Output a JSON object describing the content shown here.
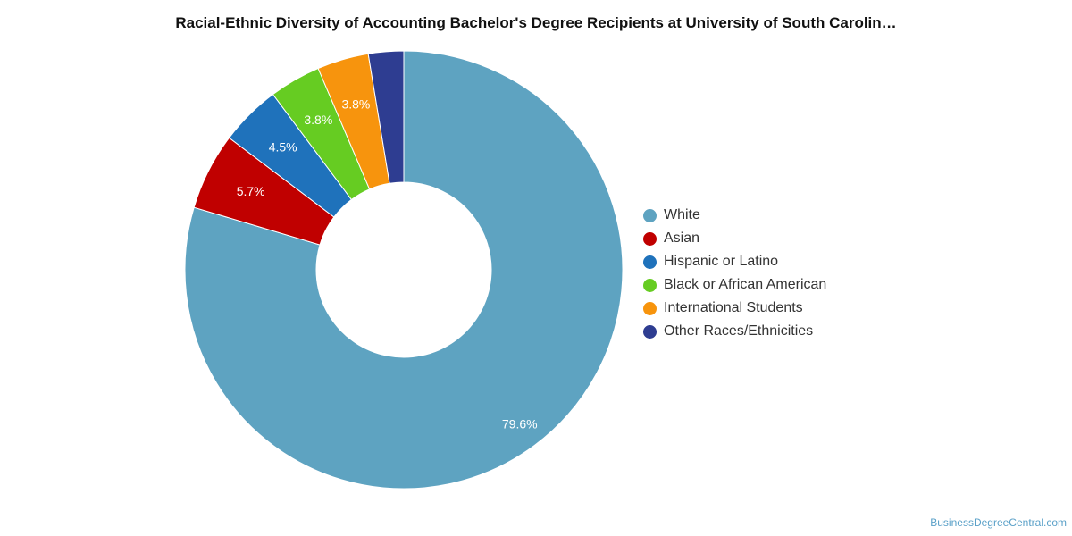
{
  "chart_data": {
    "type": "pie",
    "donut": true,
    "title": "Racial-Ethnic Diversity of Accounting Bachelor's Degree Recipients at University of South Carolin…",
    "legend_position": "right",
    "slices": [
      {
        "name": "White",
        "value": 79.6,
        "label": "79.6%",
        "color": "#5ea3c1"
      },
      {
        "name": "Asian",
        "value": 5.7,
        "label": "5.7%",
        "color": "#c00000"
      },
      {
        "name": "Hispanic or Latino",
        "value": 4.5,
        "label": "4.5%",
        "color": "#1f72bb"
      },
      {
        "name": "Black or African American",
        "value": 3.8,
        "label": "3.8%",
        "color": "#66cc22"
      },
      {
        "name": "International Students",
        "value": 3.8,
        "label": "3.8%",
        "color": "#f7940d"
      },
      {
        "name": "Other Races/Ethnicities",
        "value": 2.6,
        "label": "",
        "color": "#2e3d91"
      }
    ]
  },
  "credit": "BusinessDegreeCentral.com"
}
